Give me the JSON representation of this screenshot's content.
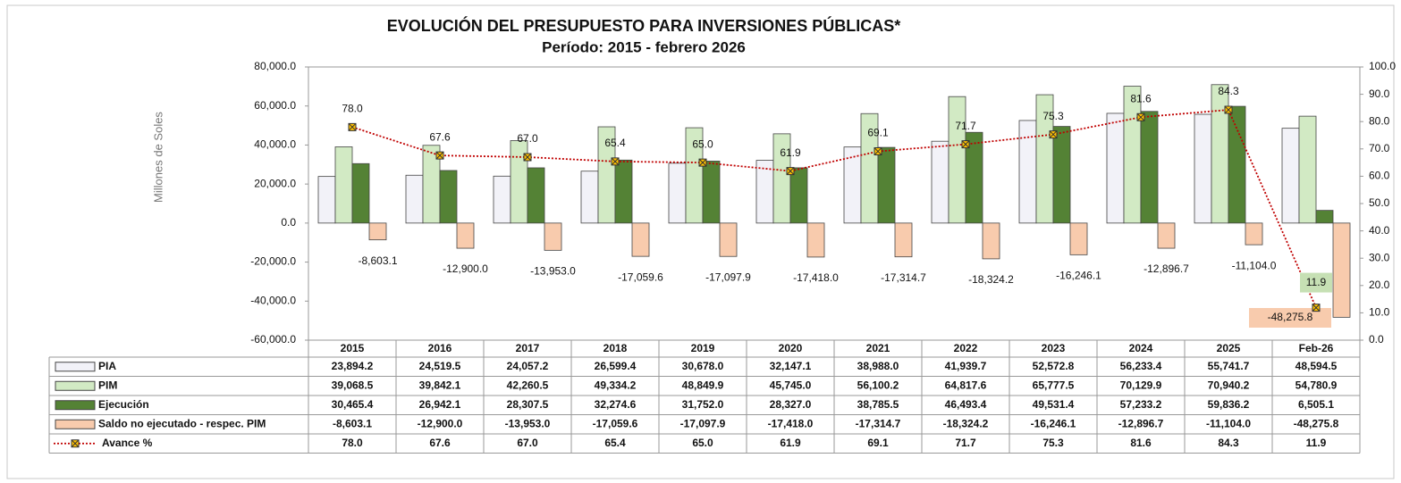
{
  "chart_data": {
    "type": "bar",
    "title": "EVOLUCIÓN DEL PRESUPUESTO PARA INVERSIONES PÚBLICAS*",
    "subtitle": "Período: 2015 - febrero 2026",
    "y_label": "Millones de Soles",
    "categories": [
      "2015",
      "2016",
      "2017",
      "2018",
      "2019",
      "2020",
      "2021",
      "2022",
      "2023",
      "2024",
      "2025",
      "Feb-26"
    ],
    "ylim": [
      -60000,
      80000
    ],
    "yticks": [
      {
        "value": -60000,
        "label": "-60,000.0"
      },
      {
        "value": -40000,
        "label": "-40,000.0"
      },
      {
        "value": -20000,
        "label": "-20,000.0"
      },
      {
        "value": 0,
        "label": "0.0"
      },
      {
        "value": 20000,
        "label": "20,000.0"
      },
      {
        "value": 40000,
        "label": "40,000.0"
      },
      {
        "value": 60000,
        "label": "60,000.0"
      },
      {
        "value": 80000,
        "label": "80,000.0"
      }
    ],
    "y2lim": [
      0,
      100
    ],
    "y2ticks": [
      {
        "value": 0,
        "label": "0.0"
      },
      {
        "value": 10,
        "label": "10.0"
      },
      {
        "value": 20,
        "label": "20.0"
      },
      {
        "value": 30,
        "label": "30.0"
      },
      {
        "value": 40,
        "label": "40.0"
      },
      {
        "value": 50,
        "label": "50.0"
      },
      {
        "value": 60,
        "label": "60.0"
      },
      {
        "value": 70,
        "label": "70.0"
      },
      {
        "value": 80,
        "label": "80.0"
      },
      {
        "value": 90,
        "label": "90.0"
      },
      {
        "value": 100,
        "label": "100.0"
      }
    ],
    "grid": false,
    "series": [
      {
        "name": "PIA",
        "type": "bar",
        "color": "#f2f2f8",
        "values": [
          23894.2,
          24519.5,
          24057.2,
          26599.4,
          30678.0,
          32147.1,
          38988.0,
          41939.7,
          52572.8,
          56233.4,
          55741.7,
          48594.5
        ],
        "value_labels": [
          "23,894.2",
          "24,519.5",
          "24,057.2",
          "26,599.4",
          "30,678.0",
          "32,147.1",
          "38,988.0",
          "41,939.7",
          "52,572.8",
          "56,233.4",
          "55,741.7",
          "48,594.5"
        ]
      },
      {
        "name": "PIM",
        "type": "bar",
        "color": "#d2eac4",
        "values": [
          39068.5,
          39842.1,
          42260.5,
          49334.2,
          48849.9,
          45745.0,
          56100.2,
          64817.6,
          65777.5,
          70129.9,
          70940.2,
          54780.9
        ],
        "value_labels": [
          "39,068.5",
          "39,842.1",
          "42,260.5",
          "49,334.2",
          "48,849.9",
          "45,745.0",
          "56,100.2",
          "64,817.6",
          "65,777.5",
          "70,129.9",
          "70,940.2",
          "54,780.9"
        ]
      },
      {
        "name": "Ejecución",
        "type": "bar",
        "color": "#548235",
        "values": [
          30465.4,
          26942.1,
          28307.5,
          32274.6,
          31752.0,
          28327.0,
          38785.5,
          46493.4,
          49531.4,
          57233.2,
          59836.2,
          6505.1
        ],
        "value_labels": [
          "30,465.4",
          "26,942.1",
          "28,307.5",
          "32,274.6",
          "31,752.0",
          "28,327.0",
          "38,785.5",
          "46,493.4",
          "49,531.4",
          "57,233.2",
          "59,836.2",
          "6,505.1"
        ]
      },
      {
        "name": "Saldo no ejecutado - respec. PIM",
        "type": "bar",
        "color": "#f8cbad",
        "values": [
          -8603.1,
          -12900.0,
          -13953.0,
          -17059.6,
          -17097.9,
          -17418.0,
          -17314.7,
          -18324.2,
          -16246.1,
          -12896.7,
          -11104.0,
          -48275.8
        ],
        "value_labels": [
          "-8,603.1",
          "-12,900.0",
          "-13,953.0",
          "-17,059.6",
          "-17,097.9",
          "-17,418.0",
          "-17,314.7",
          "-18,324.2",
          "-16,246.1",
          "-12,896.7",
          "-11,104.0",
          "-48,275.8"
        ]
      },
      {
        "name": "Avance %",
        "type": "line",
        "axis": "y2",
        "color": "#c00000",
        "values": [
          78.0,
          67.6,
          67.0,
          65.4,
          65.0,
          61.9,
          69.1,
          71.7,
          75.3,
          81.6,
          84.3,
          11.9
        ],
        "value_labels": [
          "78.0",
          "67.6",
          "67.0",
          "65.4",
          "65.0",
          "61.9",
          "69.1",
          "71.7",
          "75.3",
          "81.6",
          "84.3",
          "11.9"
        ]
      }
    ]
  }
}
